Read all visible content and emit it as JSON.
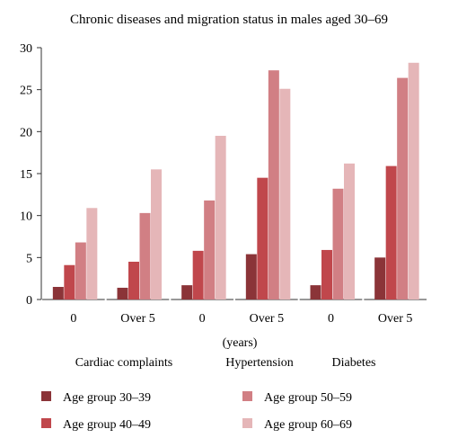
{
  "chart_data": {
    "type": "bar",
    "title": "Chronic diseases and migration status in males aged 30–69",
    "xlabel": "(years)",
    "ylabel": "",
    "ylim": [
      0,
      30
    ],
    "yticks": [
      "0",
      "5",
      "10",
      "15",
      "20",
      "25",
      "30"
    ],
    "categories": [
      "0",
      "Over 5",
      "0",
      "Over 5",
      "0",
      "Over 5"
    ],
    "groups": [
      "Cardiac complaints",
      "Hypertension",
      "Diabetes"
    ],
    "series": [
      {
        "name": "Age group 30–39",
        "color": "#8b3438",
        "values": [
          1.5,
          1.4,
          1.7,
          5.4,
          1.7,
          5.0
        ]
      },
      {
        "name": "Age group 40–49",
        "color": "#c0474c",
        "values": [
          4.1,
          4.5,
          5.8,
          14.5,
          5.9,
          15.9
        ]
      },
      {
        "name": "Age group 50–59",
        "color": "#d17f84",
        "values": [
          6.8,
          10.3,
          11.8,
          27.3,
          13.2,
          26.4
        ]
      },
      {
        "name": "Age group 60–69",
        "color": "#e5b6b8",
        "values": [
          10.9,
          15.5,
          19.5,
          25.1,
          16.2,
          28.2
        ]
      }
    ],
    "legend": "bottom",
    "grid": false
  }
}
